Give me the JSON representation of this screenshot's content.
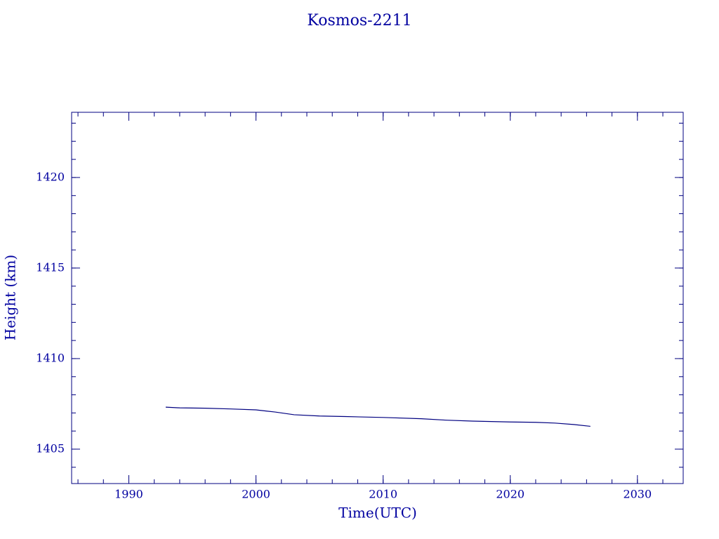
{
  "chart_data": {
    "type": "line",
    "title": "Kosmos-2211",
    "xlabel": "Time(UTC)",
    "ylabel": "Height (km)",
    "x": [
      1992.9,
      1994,
      1996,
      1998,
      2000,
      2001.5,
      2003,
      2005,
      2007,
      2010,
      2013,
      2015,
      2017,
      2020,
      2022,
      2023.5,
      2025,
      2026.3
    ],
    "series": [
      {
        "color": "#000080",
        "values": [
          1407.32,
          1407.28,
          1407.26,
          1407.22,
          1407.17,
          1407.05,
          1406.9,
          1406.83,
          1406.8,
          1406.75,
          1406.68,
          1406.6,
          1406.55,
          1406.5,
          1406.48,
          1406.44,
          1406.36,
          1406.26
        ]
      }
    ],
    "xlim": [
      1985.5,
      2033.6
    ],
    "xticks": [
      1990,
      2000,
      2010,
      2020,
      2030
    ],
    "ylim": [
      1403.1,
      1423.6
    ],
    "yticks": [
      1405,
      1410,
      1415,
      1420
    ]
  }
}
